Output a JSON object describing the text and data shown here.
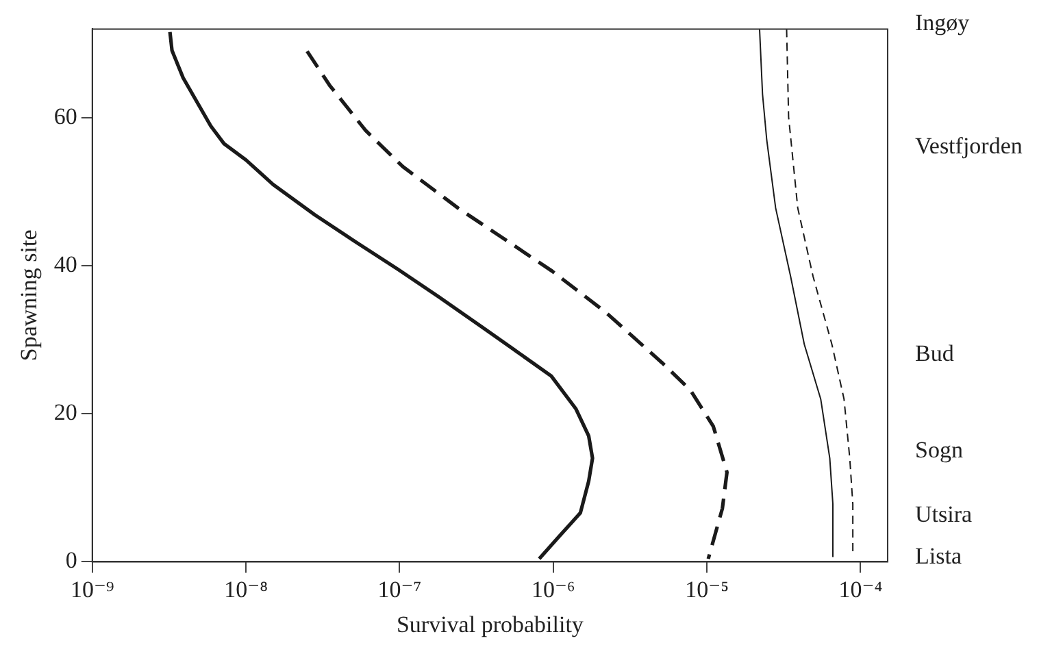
{
  "chart_data": {
    "type": "line",
    "xlabel": "Survival probability",
    "ylabel": "Spawning site",
    "log": "x",
    "grid": false,
    "legend": false,
    "marker": "none",
    "xlim": [
      1e-09,
      0.00015
    ],
    "xticks": [
      {
        "value": 1e-09,
        "label": "10⁻⁹"
      },
      {
        "value": 1e-08,
        "label": "10⁻⁸"
      },
      {
        "value": 1e-07,
        "label": "10⁻⁷"
      },
      {
        "value": 1e-06,
        "label": "10⁻⁶"
      },
      {
        "value": 1e-05,
        "label": "10⁻⁵"
      },
      {
        "value": 0.0001,
        "label": "10⁻⁴"
      }
    ],
    "ylim": [
      0,
      72
    ],
    "yticks": [
      0,
      20,
      40,
      60
    ],
    "annotations": [
      "Ingøy",
      "Vestfjorden",
      "Bud",
      "Sogn",
      "Utsira",
      "Lista"
    ],
    "series": [
      {
        "color": "#1a1a1a",
        "line_style": "solid",
        "x": [
          3.2e-09,
          3.3e-09,
          3.9e-09,
          5.9e-09,
          7.2e-09,
          1e-08,
          1.5e-08,
          2.8e-08,
          5.2e-08,
          9.8e-08,
          1.8e-07,
          3.4e-07,
          5.8e-07,
          9.7e-07,
          1.4e-06,
          1.7e-06,
          1.8e-06,
          1.7e-06,
          1.5e-06,
          1.1e-06,
          8.1e-07
        ],
        "values": [
          71.6,
          69.1,
          65.4,
          58.9,
          56.5,
          54.3,
          51.0,
          46.9,
          43.2,
          39.5,
          35.8,
          31.8,
          28.4,
          25.1,
          20.7,
          17.0,
          14.0,
          10.9,
          6.6,
          3.5,
          0.4
        ]
      },
      {
        "color": "#1a1a1a",
        "line_style": "dashed",
        "x": [
          2.5e-08,
          3.5e-08,
          6e-08,
          1.05e-07,
          2.4e-07,
          4.9e-07,
          9.8e-07,
          2.2e-06,
          5.1e-06,
          7.8e-06,
          1.1e-05,
          1.35e-05,
          1.26e-05,
          1.02e-05
        ],
        "values": [
          69.0,
          64.4,
          58.3,
          53.4,
          47.8,
          43.5,
          39.3,
          33.7,
          26.9,
          23.2,
          18.3,
          12.1,
          7.2,
          0.4
        ]
      },
      {
        "color": "#1a1a1a",
        "line_style": "solid",
        "x": [
          2.2e-05,
          2.3e-05,
          2.45e-05,
          2.8e-05,
          3.5e-05,
          4.3e-05,
          5.5e-05,
          6.3e-05,
          6.6e-05,
          6.6e-05
        ],
        "values": [
          72,
          63.2,
          57.0,
          47.8,
          38.6,
          29.4,
          22.0,
          14.0,
          7.8,
          0.7
        ]
      },
      {
        "color": "#1a1a1a",
        "line_style": "dashed",
        "x": [
          3.3e-05,
          3.4e-05,
          3.9e-05,
          4.9e-05,
          6.5e-05,
          7.8e-05,
          8.5e-05,
          8.9e-05,
          8.9e-05
        ],
        "values": [
          72,
          60.1,
          47.8,
          38.6,
          29.4,
          22.0,
          14.0,
          7.8,
          1.0
        ]
      }
    ]
  }
}
